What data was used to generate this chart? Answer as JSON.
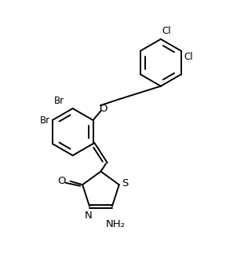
{
  "background_color": "#ffffff",
  "line_color": "#000000",
  "line_width": 1.4,
  "font_size": 8.5,
  "figsize": [
    3.02,
    3.54
  ],
  "dpi": 100,
  "xlim": [
    0,
    10
  ],
  "ylim": [
    0,
    11.7
  ]
}
